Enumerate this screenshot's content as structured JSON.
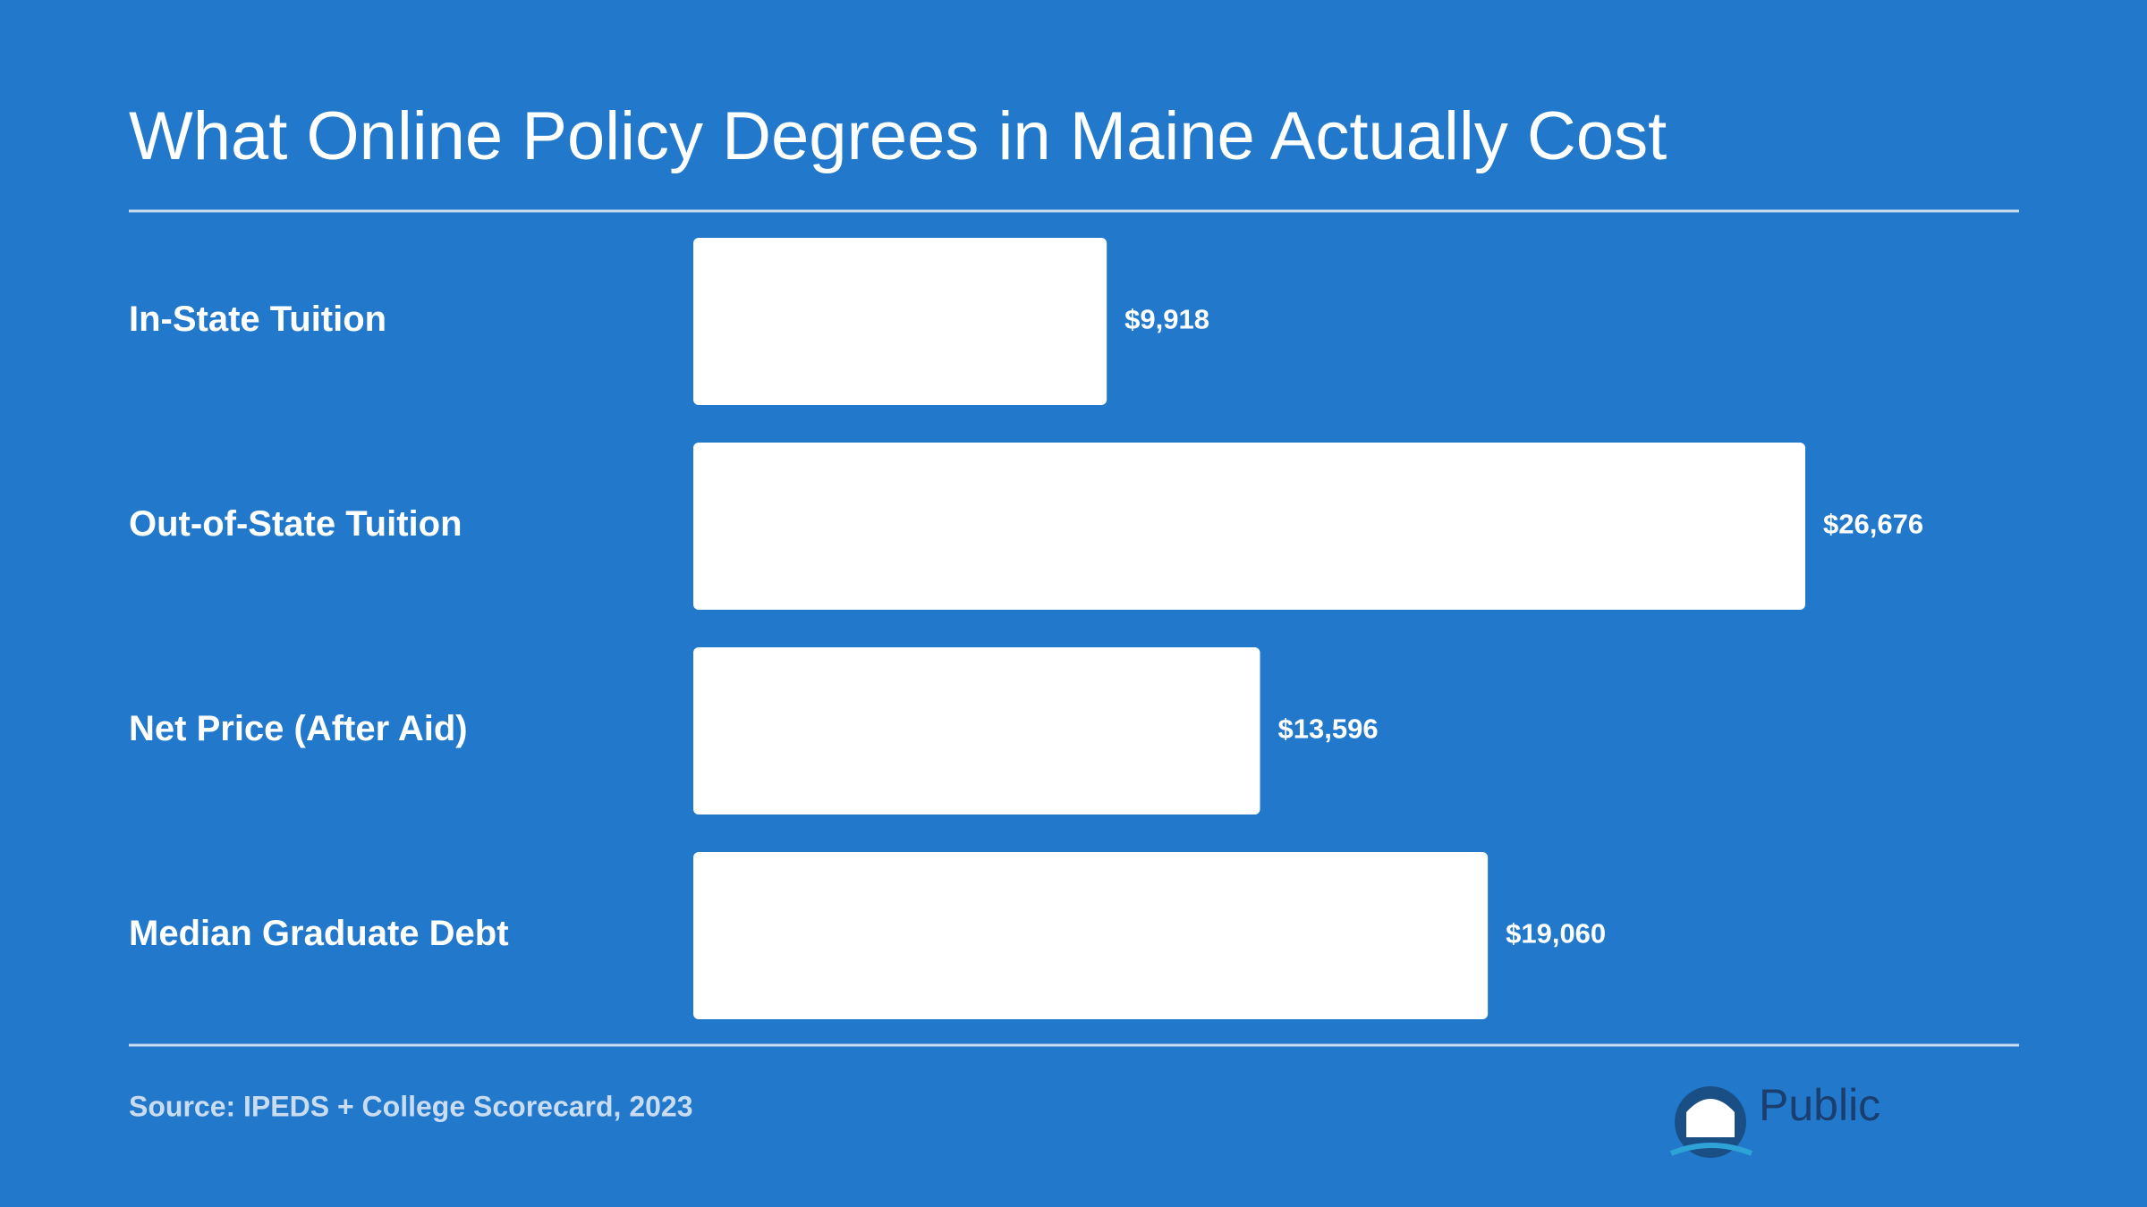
{
  "chart_data": {
    "type": "bar",
    "orientation": "horizontal",
    "title": "What Online Policy Degrees in Maine Actually Cost",
    "categories": [
      "In-State Tuition",
      "Out-of-State Tuition",
      "Net Price (After Aid)",
      "Median Graduate Debt"
    ],
    "values": [
      9918,
      26676,
      13596,
      19060
    ],
    "value_labels": [
      "$9,918",
      "$26,676",
      "$13,596",
      "$19,060"
    ],
    "color": "#ffffff",
    "source": "Source: IPEDS + College Scorecard, 2023"
  },
  "logo": {
    "text": "Public"
  }
}
